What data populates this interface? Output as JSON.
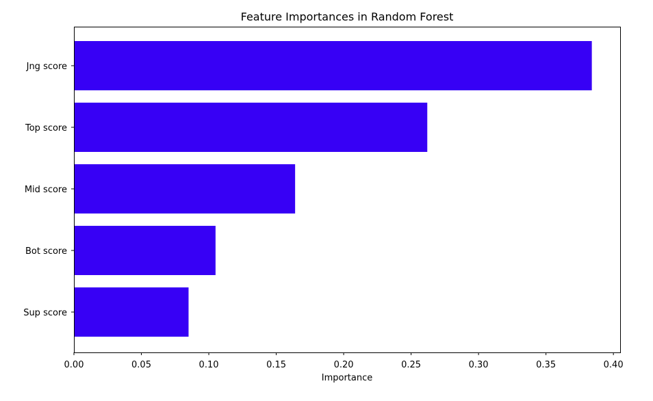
{
  "chart_data": {
    "type": "bar",
    "orientation": "horizontal",
    "title": "Feature Importances in Random Forest",
    "xlabel": "Importance",
    "ylabel": "",
    "categories": [
      "Jng score",
      "Top score",
      "Mid score",
      "Bot score",
      "Sup score"
    ],
    "values": [
      0.384,
      0.262,
      0.164,
      0.105,
      0.085
    ],
    "xlim": [
      0.0,
      0.405
    ],
    "xticks": [
      0.0,
      0.05,
      0.1,
      0.15,
      0.2,
      0.25,
      0.3,
      0.35,
      0.4
    ],
    "xtick_labels": [
      "0.00",
      "0.05",
      "0.10",
      "0.15",
      "0.20",
      "0.25",
      "0.30",
      "0.35",
      "0.40"
    ],
    "bar_color": "#3700f5",
    "grid": false,
    "legend": "none"
  }
}
